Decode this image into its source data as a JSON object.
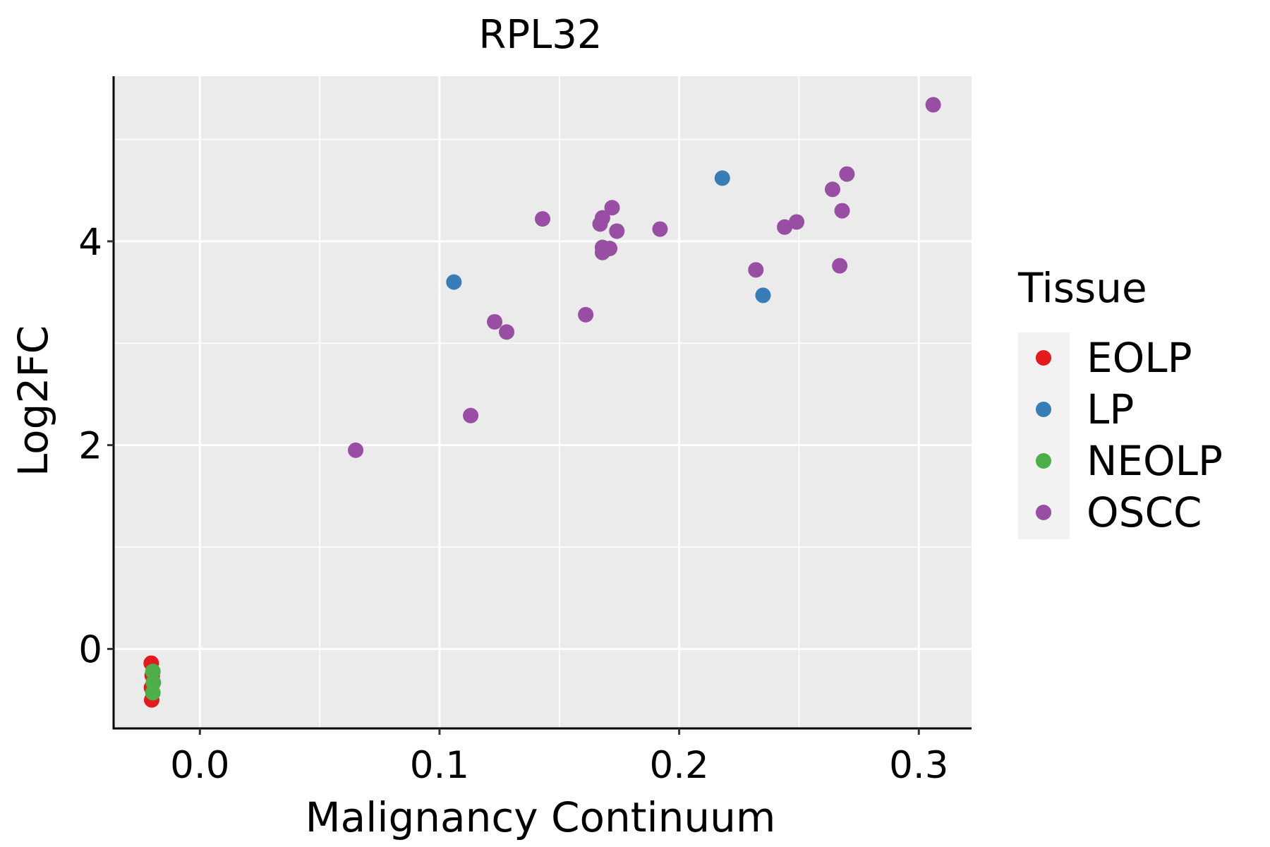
{
  "chart_data": {
    "type": "scatter",
    "title": "RPL32",
    "xlabel": "Malignancy Continuum",
    "ylabel": "Log2FC",
    "xlim": [
      -0.036,
      0.322
    ],
    "ylim": [
      -0.78,
      5.62
    ],
    "x_ticks": [
      0.0,
      0.1,
      0.2,
      0.3
    ],
    "x_tick_labels": [
      "0.0",
      "0.1",
      "0.2",
      "0.3"
    ],
    "y_ticks": [
      0,
      2,
      4
    ],
    "y_tick_labels": [
      "0",
      "2",
      "4"
    ],
    "grid": true,
    "legend": {
      "title": "Tissue",
      "position": "right"
    },
    "series": [
      {
        "name": "EOLP",
        "color": "#E41A1C",
        "points": [
          [
            -0.0203,
            -0.14
          ],
          [
            -0.0201,
            -0.5
          ],
          [
            -0.0199,
            -0.26
          ],
          [
            -0.0202,
            -0.38
          ]
        ]
      },
      {
        "name": "LP",
        "color": "#377EB8",
        "points": [
          [
            0.106,
            3.6
          ],
          [
            0.218,
            4.62
          ],
          [
            0.235,
            3.47
          ]
        ]
      },
      {
        "name": "NEOLP",
        "color": "#4DAF4A",
        "points": [
          [
            -0.0196,
            -0.22
          ],
          [
            -0.0194,
            -0.33
          ],
          [
            -0.0196,
            -0.43
          ]
        ]
      },
      {
        "name": "OSCC",
        "color": "#984EA3",
        "points": [
          [
            0.065,
            1.95
          ],
          [
            0.113,
            2.29
          ],
          [
            0.123,
            3.21
          ],
          [
            0.128,
            3.11
          ],
          [
            0.143,
            4.22
          ],
          [
            0.161,
            3.28
          ],
          [
            0.167,
            4.17
          ],
          [
            0.168,
            4.23
          ],
          [
            0.168,
            3.94
          ],
          [
            0.168,
            3.89
          ],
          [
            0.171,
            3.93
          ],
          [
            0.172,
            4.33
          ],
          [
            0.174,
            4.1
          ],
          [
            0.192,
            4.12
          ],
          [
            0.232,
            3.72
          ],
          [
            0.244,
            4.14
          ],
          [
            0.249,
            4.19
          ],
          [
            0.264,
            4.51
          ],
          [
            0.267,
            3.76
          ],
          [
            0.268,
            4.3
          ],
          [
            0.27,
            4.66
          ],
          [
            0.306,
            5.34
          ]
        ]
      }
    ]
  }
}
